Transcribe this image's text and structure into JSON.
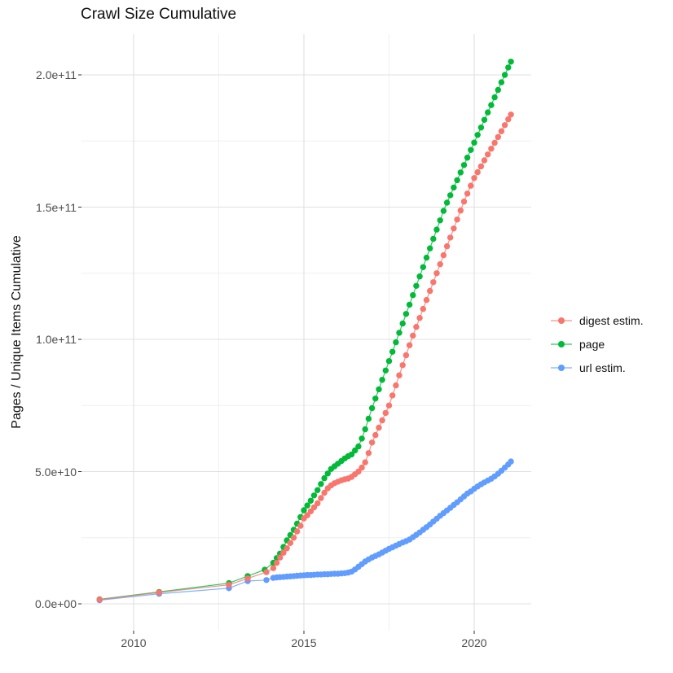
{
  "figure": {
    "title": "Crawl Size Cumulative",
    "y_axis_title": "Pages / Unique Items Cumulative"
  },
  "chart_data": {
    "type": "line",
    "title": "Crawl Size Cumulative",
    "xlabel": "",
    "ylabel": "Pages / Unique Items Cumulative",
    "grid": true,
    "legend_position": "right",
    "value_unit": "billions of items (1e9); y axis shown in scientific notation",
    "xlim": [
      2008.5,
      2021.7
    ],
    "ylim": [
      0,
      215000000000.0
    ],
    "x_major_ticks": [
      {
        "label": "2010",
        "year": 2010
      },
      {
        "label": "2015",
        "year": 2015
      },
      {
        "label": "2020",
        "year": 2020
      }
    ],
    "x_minor_gridlines_years": [
      2012.5,
      2017.5
    ],
    "y_major_ticks": [
      {
        "label": "0.0e+00",
        "billions": 0
      },
      {
        "label": "5.0e+10",
        "billions": 50
      },
      {
        "label": "1.0e+11",
        "billions": 100
      },
      {
        "label": "1.5e+11",
        "billions": 150
      },
      {
        "label": "2.0e+11",
        "billions": 200
      }
    ],
    "y_minor_gridlines_billions": [
      25,
      75,
      125,
      175
    ],
    "series": [
      {
        "name": "digest estim.",
        "color": "#F8766D",
        "points_year_billions": [
          [
            2009.0,
            1.6
          ],
          [
            2010.75,
            4.3
          ],
          [
            2012.8,
            7.2
          ],
          [
            2013.35,
            9.6
          ],
          [
            2013.9,
            12.0
          ],
          [
            2014.1,
            13.5
          ],
          [
            2014.2,
            15.5
          ],
          [
            2014.3,
            17.5
          ],
          [
            2014.4,
            19.3
          ],
          [
            2014.5,
            21.0
          ],
          [
            2014.6,
            23.0
          ],
          [
            2014.7,
            25.0
          ],
          [
            2014.8,
            27.4
          ],
          [
            2014.9,
            29.5
          ],
          [
            2015.0,
            32.3
          ],
          [
            2015.1,
            33.5
          ],
          [
            2015.2,
            35.0
          ],
          [
            2015.3,
            36.5
          ],
          [
            2015.4,
            38.0
          ],
          [
            2015.5,
            40.0
          ],
          [
            2015.6,
            42.0
          ],
          [
            2015.7,
            43.7
          ],
          [
            2015.8,
            44.8
          ],
          [
            2015.9,
            45.6
          ],
          [
            2016.0,
            46.2
          ],
          [
            2016.1,
            46.7
          ],
          [
            2016.2,
            47.1
          ],
          [
            2016.3,
            47.4
          ],
          [
            2016.4,
            48.0
          ],
          [
            2016.5,
            49.0
          ],
          [
            2016.6,
            50.0
          ],
          [
            2016.7,
            51.5
          ],
          [
            2016.8,
            53.5
          ],
          [
            2016.9,
            57.0
          ],
          [
            2017.0,
            61.0
          ],
          [
            2017.1,
            63.8
          ],
          [
            2017.2,
            66.6
          ],
          [
            2017.3,
            69.4
          ],
          [
            2017.4,
            72.2
          ],
          [
            2017.5,
            75.0
          ],
          [
            2017.6,
            78.8
          ],
          [
            2017.7,
            82.6
          ],
          [
            2017.8,
            86.4
          ],
          [
            2017.9,
            90.2
          ],
          [
            2018.0,
            94.0
          ],
          [
            2018.1,
            97.8
          ],
          [
            2018.2,
            101.4
          ],
          [
            2018.3,
            104.7
          ],
          [
            2018.4,
            108.1
          ],
          [
            2018.5,
            111.5
          ],
          [
            2018.6,
            114.9
          ],
          [
            2018.7,
            118.3
          ],
          [
            2018.8,
            121.6
          ],
          [
            2018.9,
            125.0
          ],
          [
            2019.0,
            128.4
          ],
          [
            2019.1,
            131.8
          ],
          [
            2019.2,
            135.2
          ],
          [
            2019.3,
            138.5
          ],
          [
            2019.4,
            141.9
          ],
          [
            2019.5,
            145.3
          ],
          [
            2019.6,
            148.7
          ],
          [
            2019.7,
            152.1
          ],
          [
            2019.8,
            155.1
          ],
          [
            2019.9,
            158.1
          ],
          [
            2020.0,
            161.0
          ],
          [
            2020.1,
            163.2
          ],
          [
            2020.2,
            165.4
          ],
          [
            2020.3,
            167.7
          ],
          [
            2020.4,
            169.9
          ],
          [
            2020.5,
            172.1
          ],
          [
            2020.6,
            174.3
          ],
          [
            2020.7,
            176.5
          ],
          [
            2020.8,
            178.7
          ],
          [
            2020.9,
            181.0
          ],
          [
            2021.0,
            183.2
          ],
          [
            2021.08,
            185.0
          ]
        ]
      },
      {
        "name": "page",
        "color": "#00BA38",
        "points_year_billions": [
          [
            2009.0,
            1.7
          ],
          [
            2010.75,
            4.5
          ],
          [
            2012.8,
            7.8
          ],
          [
            2013.35,
            10.5
          ],
          [
            2013.85,
            12.9
          ],
          [
            2014.1,
            15.5
          ],
          [
            2014.2,
            17.3
          ],
          [
            2014.3,
            19.0
          ],
          [
            2014.4,
            21.5
          ],
          [
            2014.5,
            24.0
          ],
          [
            2014.6,
            26.0
          ],
          [
            2014.7,
            28.0
          ],
          [
            2014.8,
            30.3
          ],
          [
            2014.9,
            32.8
          ],
          [
            2015.0,
            35.4
          ],
          [
            2015.1,
            37.2
          ],
          [
            2015.2,
            39.0
          ],
          [
            2015.3,
            41.0
          ],
          [
            2015.4,
            43.0
          ],
          [
            2015.5,
            45.3
          ],
          [
            2015.6,
            47.5
          ],
          [
            2015.7,
            49.3
          ],
          [
            2015.8,
            51.0
          ],
          [
            2015.9,
            52.0
          ],
          [
            2016.0,
            53.0
          ],
          [
            2016.1,
            54.0
          ],
          [
            2016.2,
            55.0
          ],
          [
            2016.3,
            55.8
          ],
          [
            2016.4,
            56.5
          ],
          [
            2016.5,
            58.0
          ],
          [
            2016.6,
            59.5
          ],
          [
            2016.7,
            62.5
          ],
          [
            2016.8,
            66.0
          ],
          [
            2016.9,
            70.0
          ],
          [
            2017.0,
            74.0
          ],
          [
            2017.1,
            77.6
          ],
          [
            2017.2,
            81.1
          ],
          [
            2017.3,
            84.7
          ],
          [
            2017.4,
            88.2
          ],
          [
            2017.5,
            91.8
          ],
          [
            2017.6,
            95.3
          ],
          [
            2017.7,
            98.9
          ],
          [
            2017.8,
            102.5
          ],
          [
            2017.9,
            106.0
          ],
          [
            2018.0,
            109.6
          ],
          [
            2018.1,
            113.1
          ],
          [
            2018.2,
            116.7
          ],
          [
            2018.3,
            120.2
          ],
          [
            2018.4,
            123.8
          ],
          [
            2018.5,
            127.3
          ],
          [
            2018.6,
            130.9
          ],
          [
            2018.7,
            134.4
          ],
          [
            2018.8,
            138.0
          ],
          [
            2018.9,
            141.5
          ],
          [
            2019.0,
            145.0
          ],
          [
            2019.1,
            148.6
          ],
          [
            2019.2,
            151.7
          ],
          [
            2019.3,
            154.5
          ],
          [
            2019.4,
            157.4
          ],
          [
            2019.5,
            160.2
          ],
          [
            2019.6,
            163.1
          ],
          [
            2019.7,
            165.9
          ],
          [
            2019.8,
            168.7
          ],
          [
            2019.9,
            171.6
          ],
          [
            2020.0,
            174.4
          ],
          [
            2020.1,
            177.3
          ],
          [
            2020.2,
            180.1
          ],
          [
            2020.3,
            183.0
          ],
          [
            2020.4,
            185.8
          ],
          [
            2020.5,
            188.6
          ],
          [
            2020.6,
            191.5
          ],
          [
            2020.7,
            194.3
          ],
          [
            2020.8,
            197.2
          ],
          [
            2020.9,
            200.0
          ],
          [
            2021.0,
            202.8
          ],
          [
            2021.08,
            205.0
          ]
        ]
      },
      {
        "name": "url estim.",
        "color": "#619CFF",
        "points_year_billions": [
          [
            2009.0,
            1.4
          ],
          [
            2010.75,
            3.8
          ],
          [
            2012.8,
            5.9
          ],
          [
            2013.35,
            8.6
          ],
          [
            2013.9,
            9.0
          ],
          [
            2014.1,
            9.8
          ],
          [
            2014.2,
            10.0
          ],
          [
            2014.3,
            10.1
          ],
          [
            2014.4,
            10.2
          ],
          [
            2014.5,
            10.3
          ],
          [
            2014.6,
            10.4
          ],
          [
            2014.7,
            10.5
          ],
          [
            2014.8,
            10.6
          ],
          [
            2014.9,
            10.7
          ],
          [
            2015.0,
            10.8
          ],
          [
            2015.1,
            10.9
          ],
          [
            2015.2,
            10.9
          ],
          [
            2015.3,
            11.0
          ],
          [
            2015.4,
            11.1
          ],
          [
            2015.5,
            11.1
          ],
          [
            2015.6,
            11.2
          ],
          [
            2015.7,
            11.2
          ],
          [
            2015.8,
            11.3
          ],
          [
            2015.9,
            11.4
          ],
          [
            2016.0,
            11.4
          ],
          [
            2016.1,
            11.5
          ],
          [
            2016.2,
            11.6
          ],
          [
            2016.3,
            11.8
          ],
          [
            2016.4,
            12.2
          ],
          [
            2016.5,
            13.0
          ],
          [
            2016.6,
            14.0
          ],
          [
            2016.7,
            15.0
          ],
          [
            2016.8,
            16.0
          ],
          [
            2016.9,
            16.8
          ],
          [
            2017.0,
            17.5
          ],
          [
            2017.1,
            18.1
          ],
          [
            2017.2,
            18.7
          ],
          [
            2017.3,
            19.4
          ],
          [
            2017.4,
            20.1
          ],
          [
            2017.5,
            20.8
          ],
          [
            2017.6,
            21.4
          ],
          [
            2017.7,
            22.0
          ],
          [
            2017.8,
            22.6
          ],
          [
            2017.9,
            23.2
          ],
          [
            2018.0,
            23.7
          ],
          [
            2018.1,
            24.3
          ],
          [
            2018.2,
            25.2
          ],
          [
            2018.3,
            26.1
          ],
          [
            2018.4,
            27.0
          ],
          [
            2018.5,
            28.0
          ],
          [
            2018.6,
            29.0
          ],
          [
            2018.7,
            30.0
          ],
          [
            2018.8,
            31.1
          ],
          [
            2018.9,
            32.2
          ],
          [
            2019.0,
            33.3
          ],
          [
            2019.1,
            34.3
          ],
          [
            2019.2,
            35.3
          ],
          [
            2019.3,
            36.3
          ],
          [
            2019.4,
            37.4
          ],
          [
            2019.5,
            38.4
          ],
          [
            2019.6,
            39.5
          ],
          [
            2019.7,
            40.6
          ],
          [
            2019.8,
            41.7
          ],
          [
            2019.9,
            42.5
          ],
          [
            2020.0,
            43.5
          ],
          [
            2020.1,
            44.4
          ],
          [
            2020.2,
            45.2
          ],
          [
            2020.3,
            45.9
          ],
          [
            2020.4,
            46.6
          ],
          [
            2020.5,
            47.3
          ],
          [
            2020.6,
            48.2
          ],
          [
            2020.7,
            49.2
          ],
          [
            2020.8,
            50.3
          ],
          [
            2020.9,
            51.5
          ],
          [
            2021.0,
            52.7
          ],
          [
            2021.08,
            53.8
          ]
        ]
      }
    ]
  }
}
